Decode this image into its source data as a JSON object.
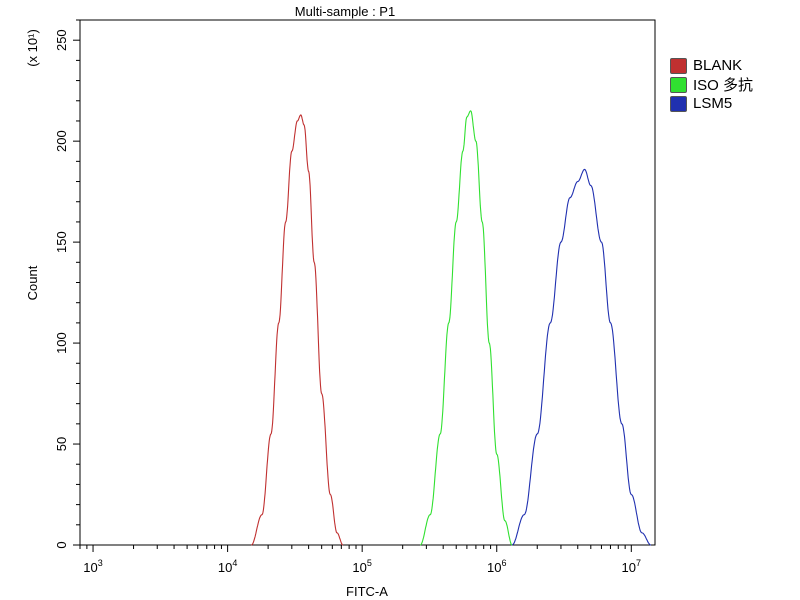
{
  "chart_data": {
    "type": "line",
    "title": "Multi-sample : P1",
    "xlabel": "FITC-A",
    "ylabel": "Count",
    "y_multiplier_label": "(x 10¹)",
    "x_scale": "log",
    "xlim": [
      800,
      15000000
    ],
    "ylim": [
      0,
      260
    ],
    "x_ticks": [
      {
        "value": 1000,
        "base": "10",
        "exp": "3"
      },
      {
        "value": 10000,
        "base": "10",
        "exp": "4"
      },
      {
        "value": 100000,
        "base": "10",
        "exp": "5"
      },
      {
        "value": 1000000,
        "base": "10",
        "exp": "6"
      },
      {
        "value": 10000000,
        "base": "10",
        "exp": "7"
      }
    ],
    "y_ticks": [
      0,
      50,
      100,
      150,
      200,
      250
    ],
    "legend_position": "right",
    "series": [
      {
        "name": "BLANK",
        "color": "#c03030",
        "x": [
          15000,
          18000,
          21000,
          24000,
          27000,
          30000,
          33000,
          35000,
          37000,
          40000,
          44000,
          50000,
          58000,
          65000,
          72000
        ],
        "y": [
          0,
          15,
          55,
          110,
          160,
          195,
          210,
          213,
          208,
          185,
          140,
          75,
          25,
          6,
          0
        ]
      },
      {
        "name": "ISO 多抗",
        "color": "#30e030",
        "x": [
          270000,
          320000,
          380000,
          440000,
          500000,
          560000,
          600000,
          640000,
          700000,
          780000,
          880000,
          1000000,
          1150000,
          1300000
        ],
        "y": [
          0,
          15,
          55,
          110,
          160,
          195,
          212,
          215,
          200,
          160,
          100,
          45,
          12,
          0
        ]
      },
      {
        "name": "LSM5",
        "color": "#2030b0",
        "x": [
          1300000,
          1600000,
          2000000,
          2500000,
          3000000,
          3500000,
          4000000,
          4500000,
          5000000,
          6000000,
          7000000,
          8500000,
          10000000,
          12000000,
          14000000
        ],
        "y": [
          0,
          15,
          55,
          110,
          150,
          172,
          180,
          186,
          178,
          150,
          110,
          60,
          25,
          6,
          0
        ]
      }
    ]
  }
}
